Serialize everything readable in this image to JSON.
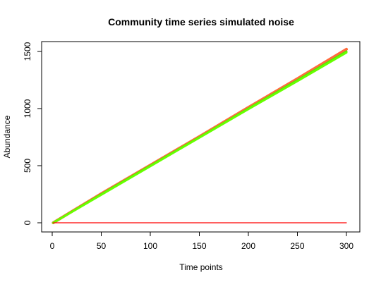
{
  "chart_data": {
    "type": "line",
    "title": "Community time series simulated noise",
    "xlabel": "Time points",
    "ylabel": "Abundance",
    "xlim": [
      0,
      300
    ],
    "ylim": [
      0,
      1500
    ],
    "x_ticks": [
      0,
      50,
      100,
      150,
      200,
      250,
      300
    ],
    "y_ticks": [
      0,
      500,
      1000,
      1500
    ],
    "grid": false,
    "legend": "none",
    "series": [
      {
        "color": "#ff6a3d",
        "x": [
          1,
          50,
          100,
          150,
          200,
          250,
          300
        ],
        "y": [
          0,
          255,
          505,
          755,
          1010,
          1262,
          1520
        ]
      },
      {
        "color": "#55e600",
        "x": [
          1,
          50,
          100,
          150,
          200,
          250,
          300
        ],
        "y": [
          0,
          250,
          500,
          748,
          1000,
          1248,
          1500
        ]
      },
      {
        "color": "#66ff00",
        "x": [
          1,
          50,
          100,
          150,
          200,
          250,
          300
        ],
        "y": [
          0,
          245,
          495,
          745,
          995,
          1240,
          1490
        ]
      },
      {
        "color": "#ff0000",
        "x": [
          1,
          300
        ],
        "y": [
          0,
          0
        ]
      }
    ]
  }
}
